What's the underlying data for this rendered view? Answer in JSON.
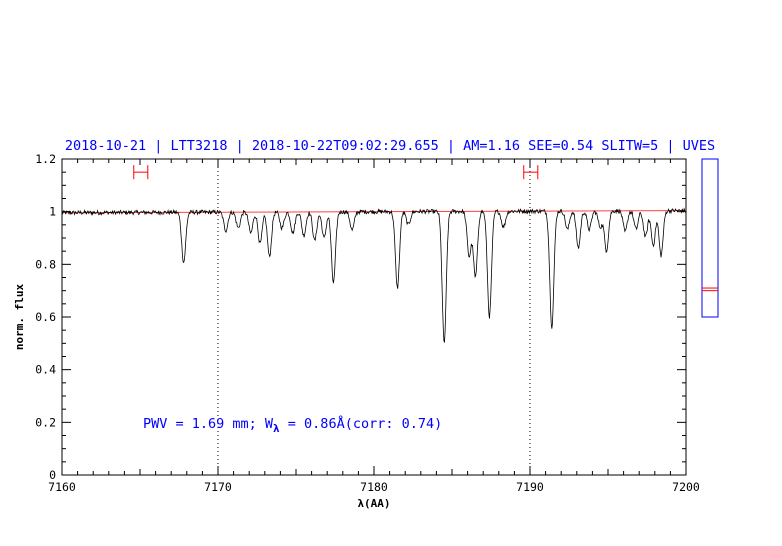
{
  "header": {
    "title": "2018-10-21 | LTT3218 | 2018-10-22T09:02:29.655 | AM=1.16  SEE=0.54  SLITW=5 | UVES"
  },
  "annotation": {
    "prefix": "PWV = 1.69 mm; W",
    "lambda": "λ",
    "suffix": " = 0.86Å(corr: 0.74)"
  },
  "colors": {
    "blue": "#0000ff",
    "red": "#ff0000",
    "axis": "#000000",
    "spectrum": "#000000",
    "model": "#ff4040"
  },
  "chart_data": {
    "type": "line",
    "title": "2018-10-21 | LTT3218 | 2018-10-22T09:02:29.655 | AM=1.16  SEE=0.54  SLITW=5 | UVES",
    "xlabel": "λ(AA)",
    "ylabel": "norm. flux",
    "xlim": [
      7160,
      7200
    ],
    "ylim": [
      0,
      1.2
    ],
    "xticks": [
      7160,
      7170,
      7180,
      7190,
      7200
    ],
    "xtick_labels": [
      "7160",
      "7170",
      "7180",
      "7190",
      "7200"
    ],
    "yticks": [
      0,
      0.2,
      0.4,
      0.6,
      0.8,
      1,
      1.2
    ],
    "ytick_labels": [
      "0",
      "0.2",
      "0.4",
      "0.6",
      "0.8",
      "1",
      "1.2"
    ],
    "continuum_level": 1.0,
    "continuum_slope_per_A": 0.0002,
    "vertical_dotted_lines_x": [
      7170,
      7190
    ],
    "error_bars": [
      {
        "x_left": 7164.6,
        "x_right": 7165.5,
        "y": 1.15
      },
      {
        "x_left": 7189.6,
        "x_right": 7190.5,
        "y": 1.15
      }
    ],
    "absorption_lines": [
      {
        "x": 7167.8,
        "depth": 0.19
      },
      {
        "x": 7170.5,
        "depth": 0.07
      },
      {
        "x": 7171.3,
        "depth": 0.06
      },
      {
        "x": 7172.1,
        "depth": 0.08
      },
      {
        "x": 7172.7,
        "depth": 0.12
      },
      {
        "x": 7173.3,
        "depth": 0.17
      },
      {
        "x": 7174.1,
        "depth": 0.06
      },
      {
        "x": 7174.8,
        "depth": 0.08
      },
      {
        "x": 7175.5,
        "depth": 0.09
      },
      {
        "x": 7176.2,
        "depth": 0.11
      },
      {
        "x": 7176.8,
        "depth": 0.1
      },
      {
        "x": 7177.4,
        "depth": 0.27
      },
      {
        "x": 7178.6,
        "depth": 0.07
      },
      {
        "x": 7181.5,
        "depth": 0.29
      },
      {
        "x": 7182.2,
        "depth": 0.05
      },
      {
        "x": 7184.5,
        "depth": 0.5
      },
      {
        "x": 7186.1,
        "depth": 0.17
      },
      {
        "x": 7186.5,
        "depth": 0.25
      },
      {
        "x": 7187.4,
        "depth": 0.4
      },
      {
        "x": 7188.3,
        "depth": 0.06
      },
      {
        "x": 7191.4,
        "depth": 0.44
      },
      {
        "x": 7192.4,
        "depth": 0.07
      },
      {
        "x": 7193.1,
        "depth": 0.14
      },
      {
        "x": 7193.8,
        "depth": 0.07
      },
      {
        "x": 7194.5,
        "depth": 0.06
      },
      {
        "x": 7194.9,
        "depth": 0.15
      },
      {
        "x": 7196.1,
        "depth": 0.08
      },
      {
        "x": 7196.8,
        "depth": 0.07
      },
      {
        "x": 7197.4,
        "depth": 0.1
      },
      {
        "x": 7197.9,
        "depth": 0.13
      },
      {
        "x": 7198.4,
        "depth": 0.17
      }
    ],
    "noise_amplitude": 0.008,
    "side_panel": {
      "ylim": [
        0,
        1.2
      ],
      "panel_range": [
        0.6,
        1.2
      ],
      "red_marks": [
        0.7,
        0.71
      ]
    }
  }
}
